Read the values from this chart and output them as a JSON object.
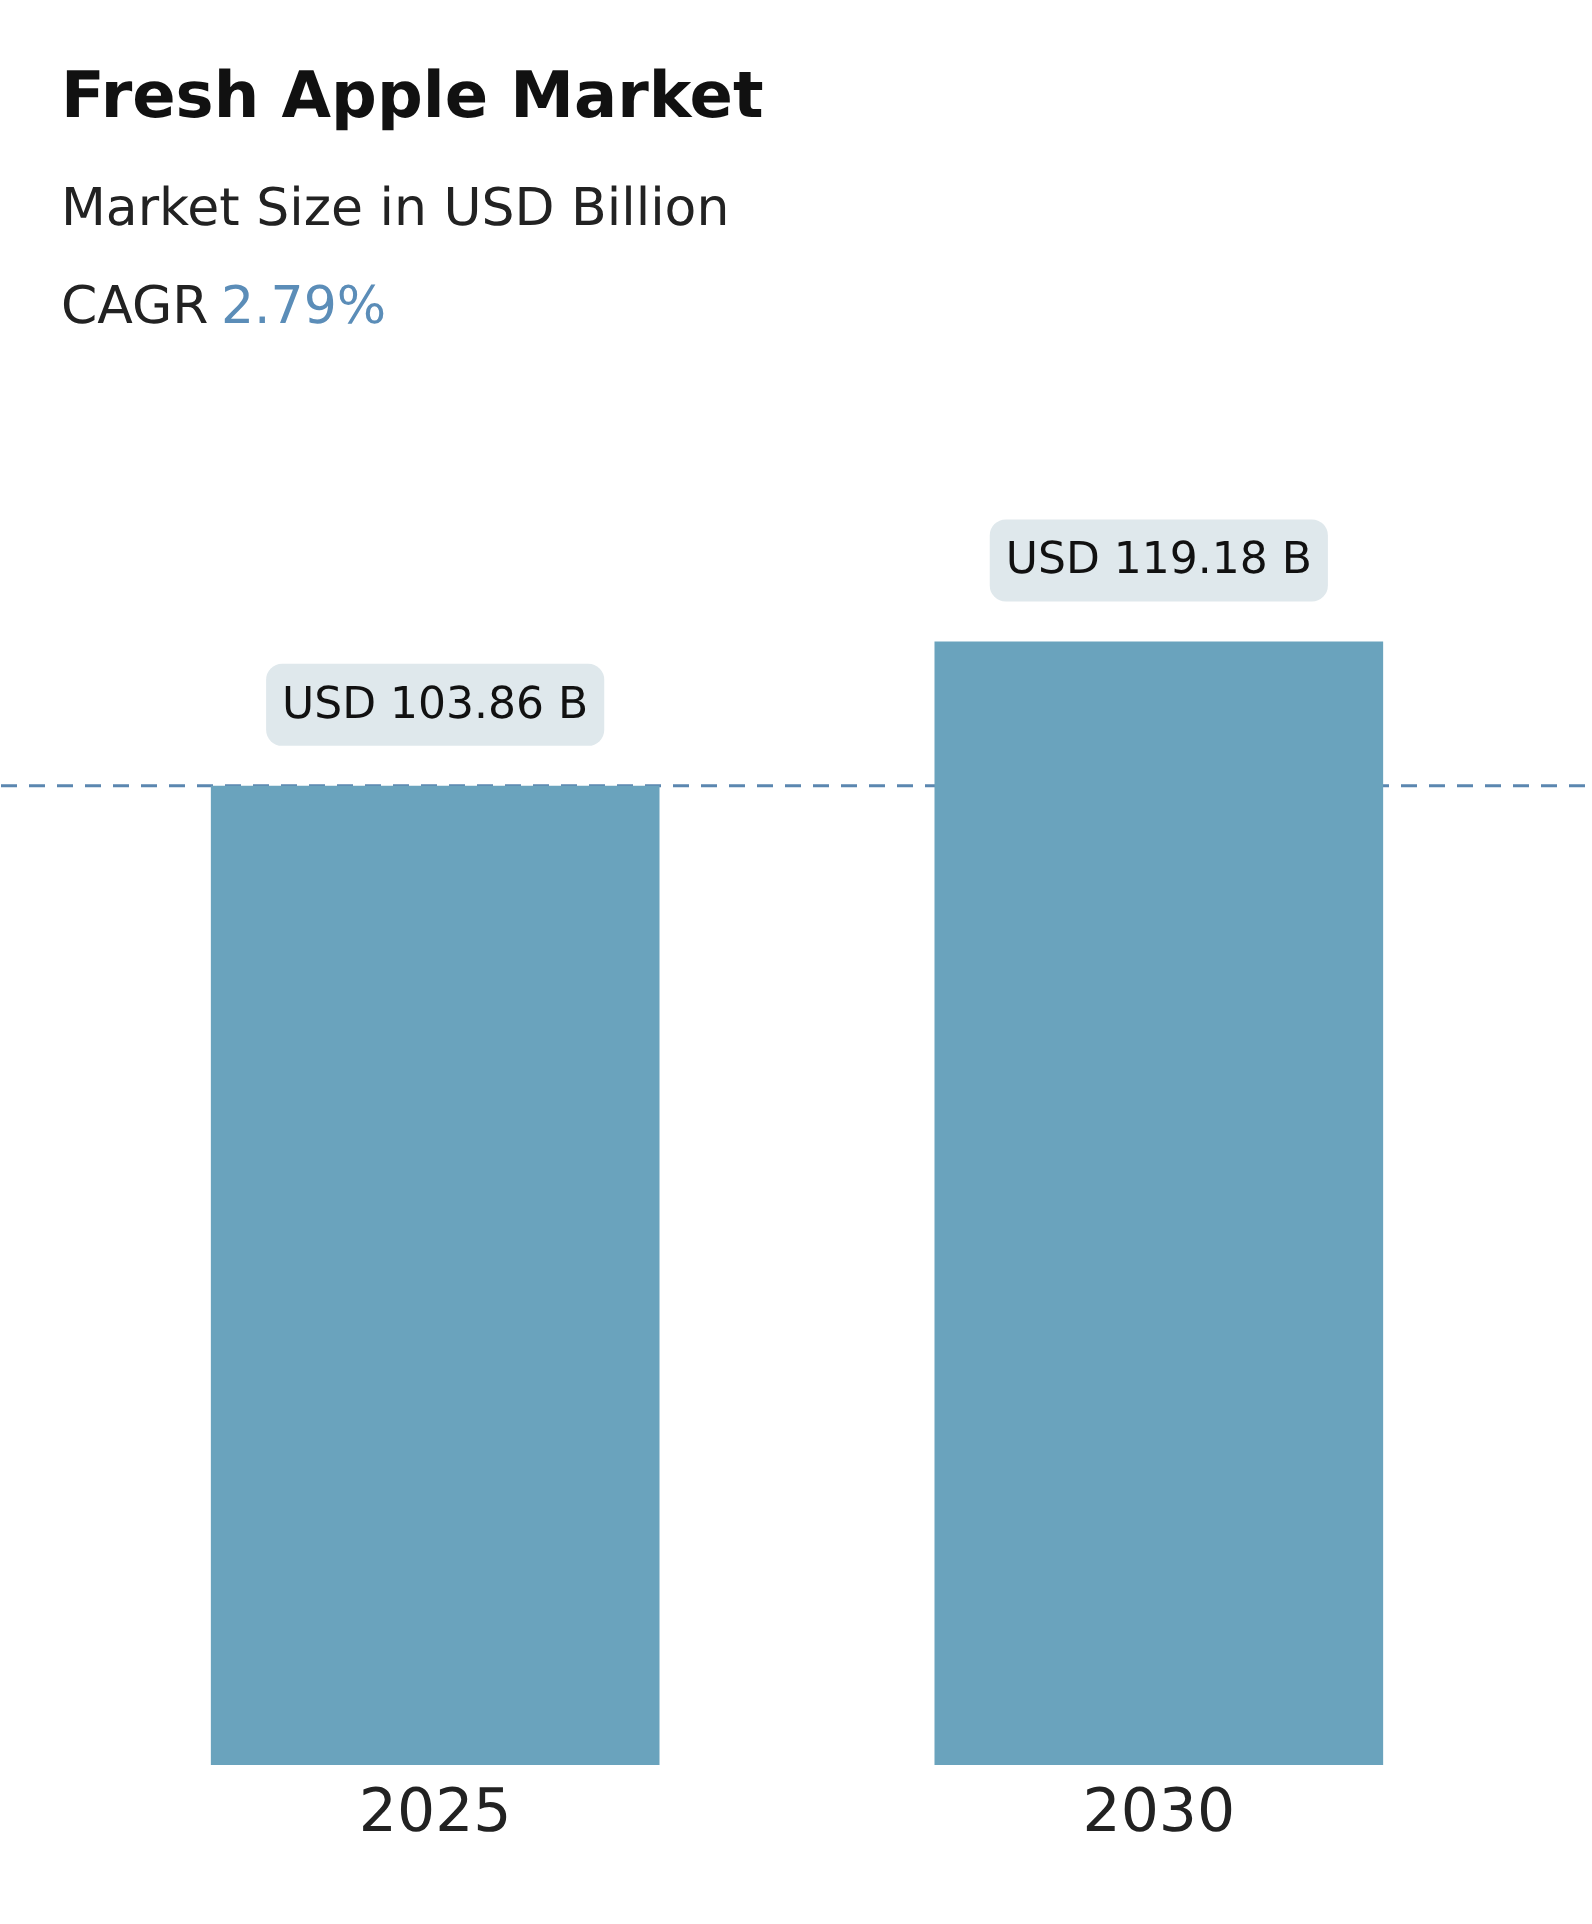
{
  "chart_data": {
    "type": "bar",
    "title": "Fresh Apple Market",
    "subtitle": "Market Size in USD Billion",
    "annotations": [
      "CAGR",
      "2.79%"
    ],
    "categories": [
      "2025",
      "2030"
    ],
    "values": [
      103.86,
      119.18
    ],
    "value_labels": [
      "USD 103.86 B",
      "USD 119.18 B"
    ],
    "color": "#6aa3bd",
    "ref_lines": [
      {
        "axis": "y",
        "value": 103.86,
        "label": null,
        "color": "#5b87b0",
        "line_style": "dashed"
      }
    ],
    "grid": false
  }
}
